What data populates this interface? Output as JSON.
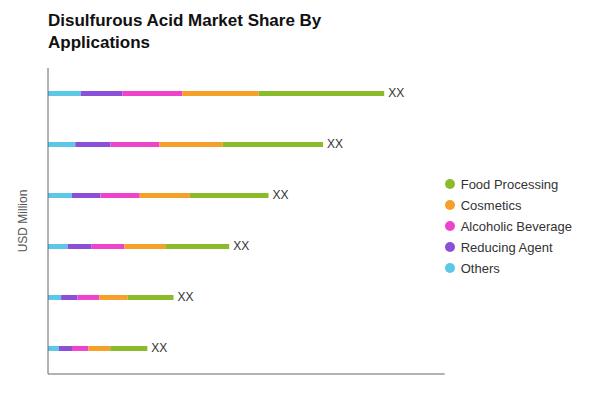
{
  "chart_data": {
    "type": "bar",
    "title": "Disulfurous Acid Market Share By\nApplications",
    "ylabel": "USD Million",
    "orientation": "horizontal",
    "stacked": true,
    "categories": [
      null,
      null,
      null,
      null,
      null,
      null
    ],
    "series": [
      {
        "name": "Others",
        "color": "#5BC8E8",
        "values": [
          0.3,
          0.25,
          0.22,
          0.18,
          0.12,
          0.1
        ]
      },
      {
        "name": "Reducing Agent",
        "color": "#8B4FD8",
        "values": [
          0.38,
          0.32,
          0.26,
          0.22,
          0.15,
          0.12
        ]
      },
      {
        "name": "Alcoholic Beverage",
        "color": "#EE44CC",
        "values": [
          0.55,
          0.45,
          0.36,
          0.3,
          0.2,
          0.15
        ]
      },
      {
        "name": "Cosmetics",
        "color": "#F5A028",
        "values": [
          0.7,
          0.58,
          0.46,
          0.38,
          0.26,
          0.2
        ]
      },
      {
        "name": "Food Processing",
        "color": "#8BBB2A",
        "values": [
          1.15,
          0.92,
          0.72,
          0.58,
          0.42,
          0.34
        ]
      }
    ],
    "annotations": [
      "XX",
      "XX",
      "XX",
      "XX",
      "XX",
      "XX"
    ],
    "xlim": [
      0,
      3.6344
    ],
    "tick_labels": false,
    "legend": "right"
  }
}
